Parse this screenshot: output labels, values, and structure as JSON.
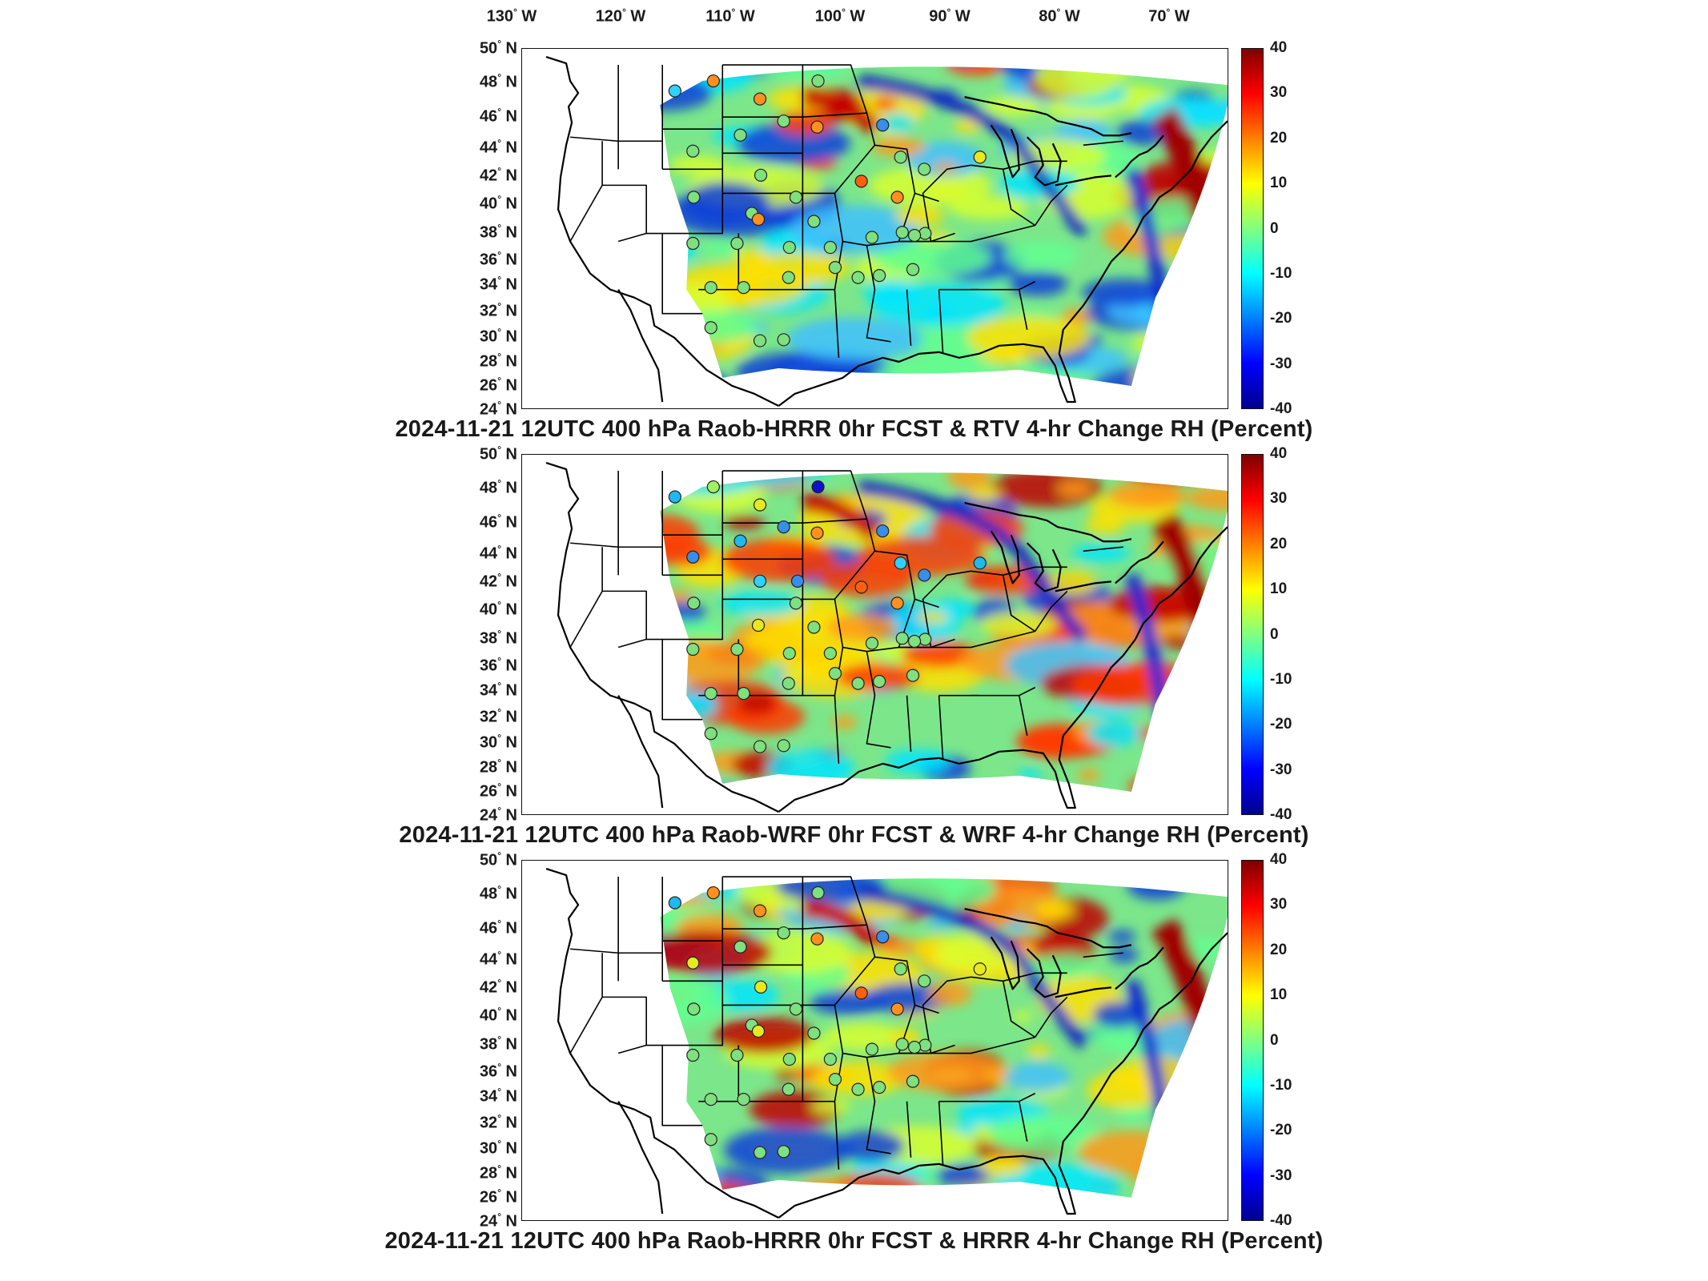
{
  "longitude_labels": [
    {
      "value": "130",
      "hem": "W"
    },
    {
      "value": "120",
      "hem": "W"
    },
    {
      "value": "110",
      "hem": "W"
    },
    {
      "value": "100",
      "hem": "W"
    },
    {
      "value": "90",
      "hem": "W"
    },
    {
      "value": "80",
      "hem": "W"
    },
    {
      "value": "70",
      "hem": "W"
    }
  ],
  "latitude_labels": [
    {
      "value": "50",
      "hem": "N"
    },
    {
      "value": "48",
      "hem": "N"
    },
    {
      "value": "46",
      "hem": "N"
    },
    {
      "value": "44",
      "hem": "N"
    },
    {
      "value": "42",
      "hem": "N"
    },
    {
      "value": "40",
      "hem": "N"
    },
    {
      "value": "38",
      "hem": "N"
    },
    {
      "value": "36",
      "hem": "N"
    },
    {
      "value": "34",
      "hem": "N"
    },
    {
      "value": "32",
      "hem": "N"
    },
    {
      "value": "30",
      "hem": "N"
    },
    {
      "value": "28",
      "hem": "N"
    },
    {
      "value": "26",
      "hem": "N"
    },
    {
      "value": "24",
      "hem": "N"
    }
  ],
  "colorbar": {
    "ticks": [
      "40",
      "30",
      "20",
      "10",
      "0",
      "-10",
      "-20",
      "-30",
      "-40"
    ],
    "colors": [
      "#7f0000",
      "#ff0000",
      "#ff8000",
      "#ffff00",
      "#80ff80",
      "#00ffff",
      "#0080ff",
      "#0000ff",
      "#00008f"
    ]
  },
  "panels": [
    {
      "title": "2024-11-21 12UTC 400 hPa Raob-HRRR 0hr FCST & RTV 4-hr Change RH (Percent)"
    },
    {
      "title": "2024-11-21 12UTC 400 hPa Raob-WRF 0hr FCST & WRF 4-hr Change RH (Percent)"
    },
    {
      "title": "2024-11-21 12UTC 400 hPa Raob-HRRR 0hr FCST & HRRR 4-hr Change RH (Percent)"
    }
  ]
}
